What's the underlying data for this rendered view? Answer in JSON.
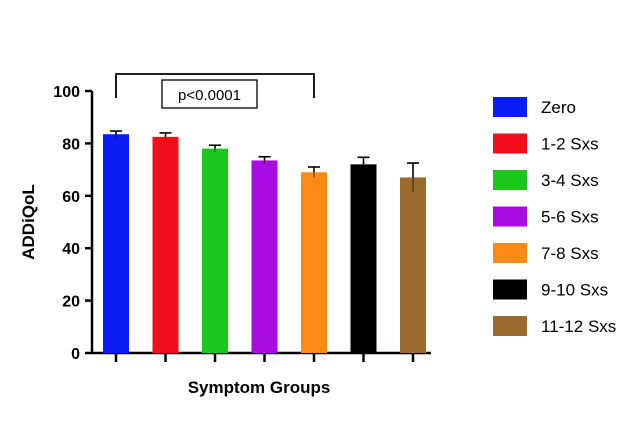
{
  "chart_data": {
    "type": "bar",
    "title": "",
    "xlabel": "Symptom Groups",
    "ylabel": "ADDiQoL",
    "ylim": [
      0,
      100
    ],
    "yticks": [
      0,
      20,
      40,
      60,
      80,
      100
    ],
    "grid": false,
    "legend_position": "right",
    "categories": [
      "Zero",
      "1-2 Sxs",
      "3-4 Sxs",
      "5-6 Sxs",
      "7-8 Sxs",
      "9-10 Sxs",
      "11-12 Sxs"
    ],
    "values": [
      83.5,
      82.5,
      78,
      73.5,
      69,
      72,
      67
    ],
    "error": [
      1.2,
      1.5,
      1.3,
      1.4,
      2.0,
      2.7,
      5.5
    ],
    "colors": [
      "#0b1cf5",
      "#f20d1b",
      "#1cc81e",
      "#a80ce0",
      "#fc8a14",
      "#000000",
      "#9b6a2e"
    ],
    "annotation": {
      "text": "p<0.0001",
      "from_category": "Zero",
      "to_category": "7-8 Sxs"
    }
  }
}
